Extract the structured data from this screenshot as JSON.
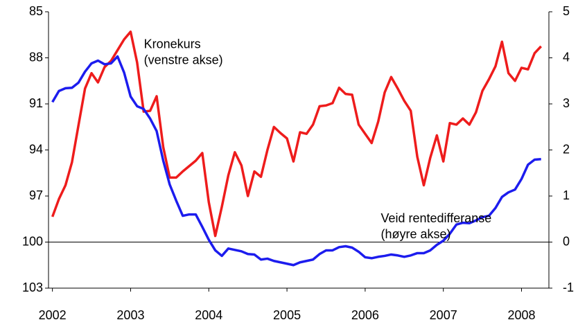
{
  "chart_data": {
    "type": "line",
    "x": [
      2002.0,
      2002.083,
      2002.167,
      2002.25,
      2002.333,
      2002.417,
      2002.5,
      2002.583,
      2002.667,
      2002.75,
      2002.833,
      2002.917,
      2003.0,
      2003.083,
      2003.167,
      2003.25,
      2003.333,
      2003.417,
      2003.5,
      2003.583,
      2003.667,
      2003.75,
      2003.833,
      2003.917,
      2004.0,
      2004.083,
      2004.167,
      2004.25,
      2004.333,
      2004.417,
      2004.5,
      2004.583,
      2004.667,
      2004.75,
      2004.833,
      2004.917,
      2005.0,
      2005.083,
      2005.167,
      2005.25,
      2005.333,
      2005.417,
      2005.5,
      2005.583,
      2005.667,
      2005.75,
      2005.833,
      2005.917,
      2006.0,
      2006.083,
      2006.167,
      2006.25,
      2006.333,
      2006.417,
      2006.5,
      2006.583,
      2006.667,
      2006.75,
      2006.833,
      2006.917,
      2007.0,
      2007.083,
      2007.167,
      2007.25,
      2007.333,
      2007.417,
      2007.5,
      2007.583,
      2007.667,
      2007.75,
      2007.833,
      2007.917,
      2008.0,
      2008.083,
      2008.167,
      2008.25
    ],
    "series": [
      {
        "name": "Kronekurs",
        "color": "#ee1c1c",
        "axis": "y",
        "values": [
          98.35,
          97.2,
          96.3,
          94.8,
          92.4,
          90.0,
          89.0,
          89.6,
          88.6,
          88.2,
          87.5,
          86.8,
          86.3,
          88.3,
          91.5,
          91.45,
          90.5,
          93.8,
          95.8,
          95.8,
          95.4,
          95.05,
          94.7,
          94.2,
          97.4,
          99.6,
          97.7,
          95.65,
          94.15,
          95.0,
          97.0,
          95.4,
          95.75,
          94.0,
          92.5,
          92.9,
          93.25,
          94.75,
          92.85,
          92.95,
          92.35,
          91.15,
          91.1,
          90.95,
          89.95,
          90.35,
          90.4,
          92.35,
          92.95,
          93.55,
          92.15,
          90.25,
          89.25,
          90.0,
          90.8,
          91.45,
          94.45,
          96.3,
          94.5,
          93.05,
          94.75,
          92.25,
          92.35,
          91.95,
          92.35,
          91.55,
          90.15,
          89.4,
          88.55,
          86.95,
          89.0,
          89.5,
          88.65,
          88.75,
          87.7,
          87.25
        ]
      },
      {
        "name": "Veid rentedifferanse",
        "color": "#1c1cee",
        "axis": "y2",
        "values": [
          3.04,
          3.28,
          3.34,
          3.35,
          3.46,
          3.7,
          3.88,
          3.94,
          3.86,
          3.88,
          4.03,
          3.68,
          3.16,
          2.95,
          2.89,
          2.68,
          2.41,
          1.77,
          1.25,
          0.9,
          0.57,
          0.6,
          0.6,
          0.33,
          0.05,
          -0.18,
          -0.3,
          -0.14,
          -0.17,
          -0.2,
          -0.26,
          -0.27,
          -0.38,
          -0.36,
          -0.41,
          -0.44,
          -0.47,
          -0.5,
          -0.44,
          -0.41,
          -0.38,
          -0.26,
          -0.18,
          -0.18,
          -0.11,
          -0.09,
          -0.12,
          -0.21,
          -0.33,
          -0.35,
          -0.32,
          -0.3,
          -0.27,
          -0.29,
          -0.32,
          -0.29,
          -0.24,
          -0.24,
          -0.18,
          -0.06,
          0.03,
          0.18,
          0.38,
          0.42,
          0.41,
          0.47,
          0.54,
          0.57,
          0.74,
          0.98,
          1.08,
          1.14,
          1.37,
          1.68,
          1.79,
          1.8
        ]
      }
    ],
    "annotations": [
      {
        "lines": [
          "Kronekurs",
          "(venstre akse)"
        ],
        "color": "#ee1c1c",
        "x": 2003.17,
        "y": 87.15
      },
      {
        "lines": [
          "Veid rentedifferanse",
          "(høyre akse)"
        ],
        "color": "#1c1cee",
        "x": 2006.2,
        "y": 98.5
      }
    ],
    "xlim": [
      2001.95,
      2008.35
    ],
    "xticks": [
      2002,
      2003,
      2004,
      2005,
      2006,
      2007,
      2008
    ],
    "ylim": [
      103,
      85
    ],
    "yticks": [
      85,
      88,
      91,
      94,
      97,
      100,
      103
    ],
    "y2lim": [
      -1,
      5
    ],
    "y2ticks": [
      -1,
      0,
      1,
      2,
      3,
      4,
      5
    ],
    "y2_reference_line": 0,
    "grid": false
  }
}
